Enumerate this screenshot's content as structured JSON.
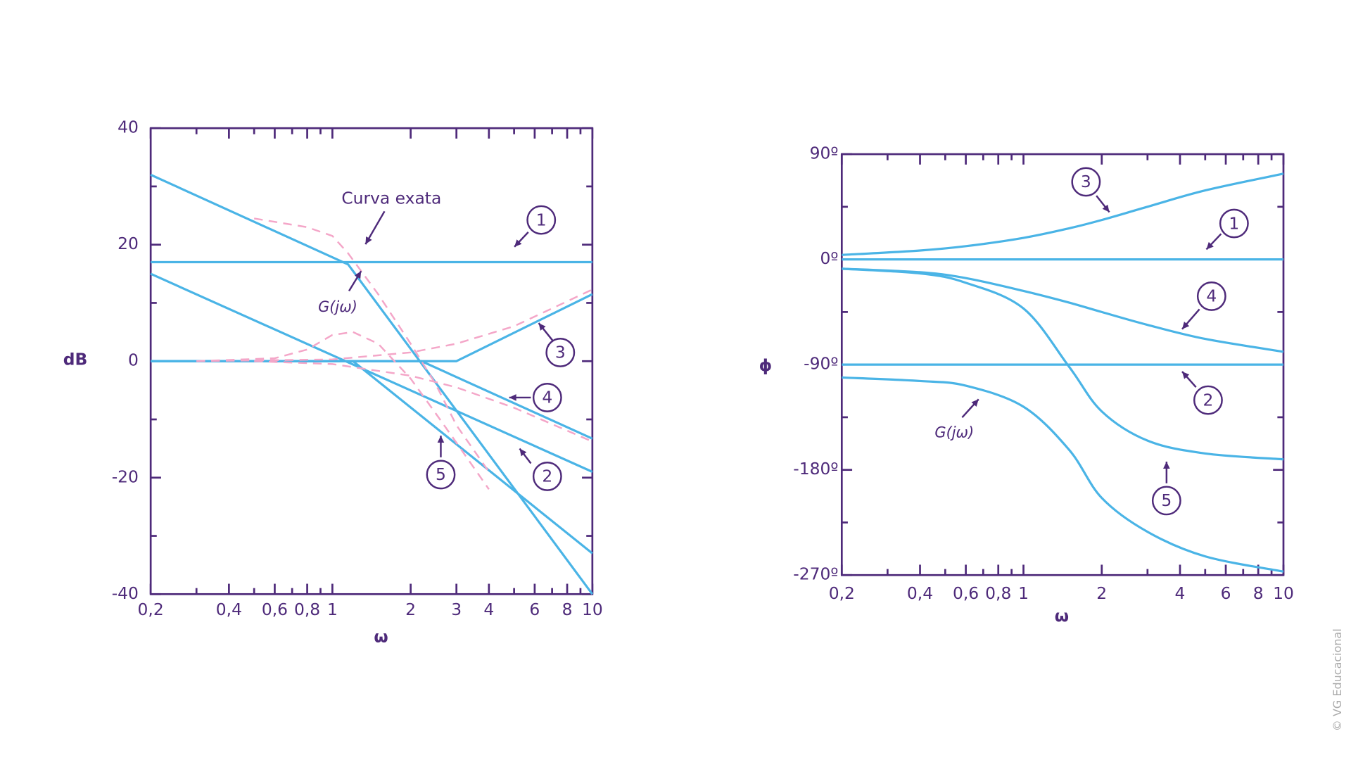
{
  "chart_data": [
    {
      "type": "line",
      "log_x": true,
      "smooth": false,
      "ylabel": "dB",
      "xlabel": "ω",
      "annotation": "Curva exata",
      "xlim": [
        0.2,
        10
      ],
      "ylim": [
        -40,
        40
      ],
      "xticks": [
        {
          "value": 0.2,
          "label": "0,2"
        },
        {
          "value": 0.4,
          "label": "0,4"
        },
        {
          "value": 0.6,
          "label": "0,6"
        },
        {
          "value": 0.8,
          "label": "0,8"
        },
        1,
        2,
        3,
        4,
        6,
        8,
        10
      ],
      "xminorticks": [
        0.3,
        0.5,
        0.7,
        0.9,
        5,
        7,
        9
      ],
      "yticks": [
        -40,
        -20,
        0,
        20,
        40
      ],
      "yminorticks": [
        -30,
        -10,
        10,
        30
      ],
      "series": [
        {
          "name": "G(jω)",
          "color": "#4ab4e6",
          "x": [
            0.2,
            1.15,
            10
          ],
          "values": [
            32,
            16.6,
            -40
          ]
        },
        {
          "name": "1",
          "color": "#4ab4e6",
          "x": [
            0.2,
            10
          ],
          "values": [
            17,
            17
          ]
        },
        {
          "name": "2",
          "color": "#4ab4e6",
          "x": [
            0.2,
            10
          ],
          "values": [
            15,
            -19
          ]
        },
        {
          "name": "3",
          "color": "#4ab4e6",
          "x": [
            0.2,
            3,
            10
          ],
          "values": [
            0,
            0,
            11.5
          ]
        },
        {
          "name": "4",
          "color": "#4ab4e6",
          "x": [
            0.2,
            2.2,
            10
          ],
          "values": [
            0,
            0,
            -13.3
          ]
        },
        {
          "name": "5",
          "color": "#4ab4e6",
          "x": [
            0.2,
            1.2,
            10
          ],
          "values": [
            0,
            0,
            -33
          ]
        },
        {
          "color": "#f4a6c8",
          "style": "dashed",
          "x": [
            0.5,
            0.8,
            1,
            1.15,
            1.5,
            2,
            2.5,
            3,
            4
          ],
          "values": [
            24.5,
            23,
            21.5,
            18.5,
            11.5,
            3,
            -4,
            -11,
            -19
          ]
        },
        {
          "color": "#f4a6c8",
          "style": "dashed",
          "x": [
            0.3,
            0.6,
            0.8,
            1,
            1.2,
            1.5,
            2,
            2.5,
            3,
            4
          ],
          "values": [
            0,
            0.5,
            2,
            4.5,
            5,
            3,
            -3,
            -9,
            -14,
            -22
          ]
        },
        {
          "color": "#f4a6c8",
          "style": "dashed",
          "x": [
            0.3,
            1,
            2,
            3,
            5,
            10
          ],
          "values": [
            0,
            0.3,
            1.5,
            3,
            6,
            12.3
          ]
        },
        {
          "color": "#f4a6c8",
          "style": "dashed",
          "x": [
            0.5,
            1,
            2,
            3,
            5,
            10
          ],
          "values": [
            0,
            -0.5,
            -2.5,
            -4.5,
            -8,
            -13.8
          ]
        }
      ]
    },
    {
      "type": "line",
      "log_x": true,
      "smooth": true,
      "ylabel": "ϕ",
      "xlabel": "ω",
      "xlim": [
        0.2,
        10
      ],
      "ylim": [
        -270,
        90
      ],
      "xticks": [
        {
          "value": 0.2,
          "label": "0,2"
        },
        {
          "value": 0.4,
          "label": "0,4"
        },
        {
          "value": 0.6,
          "label": "0,6"
        },
        {
          "value": 0.8,
          "label": "0,8"
        },
        1,
        2,
        4,
        6,
        8,
        10
      ],
      "xminorticks": [
        0.3,
        0.5,
        0.7,
        0.9,
        3,
        5,
        7,
        9
      ],
      "yticks": [
        {
          "value": -270,
          "label": "-270º"
        },
        {
          "value": -180,
          "label": "-180º"
        },
        {
          "value": -90,
          "label": "-90º"
        },
        {
          "value": 0,
          "label": "0º"
        },
        {
          "value": 90,
          "label": "90º"
        }
      ],
      "yminorticks": [
        -225,
        -135,
        -45,
        45
      ],
      "series": [
        {
          "name": "G(jω)",
          "color": "#4ab4e6",
          "x": [
            0.2,
            0.4,
            0.6,
            1,
            1.5,
            2,
            3,
            5,
            10
          ],
          "values": [
            -101,
            -104,
            -108,
            -126,
            -163,
            -204,
            -233,
            -254,
            -267
          ]
        },
        {
          "name": "1",
          "color": "#4ab4e6",
          "x": [
            0.2,
            10
          ],
          "values": [
            0,
            0
          ]
        },
        {
          "name": "2",
          "color": "#4ab4e6",
          "x": [
            0.2,
            10
          ],
          "values": [
            -90,
            -90
          ]
        },
        {
          "name": "3",
          "color": "#4ab4e6",
          "x": [
            0.2,
            0.4,
            0.6,
            1,
            1.5,
            2,
            3,
            5,
            10
          ],
          "values": [
            3.8,
            7.6,
            11.3,
            18.4,
            26.6,
            33.7,
            45,
            59,
            73.3
          ]
        },
        {
          "name": "4",
          "color": "#4ab4e6",
          "x": [
            0.2,
            0.4,
            0.6,
            1,
            1.5,
            2,
            3,
            5,
            10
          ],
          "values": [
            -8,
            -11,
            -16,
            -27,
            -37,
            -45,
            -56,
            -68,
            -79
          ]
        },
        {
          "name": "5",
          "color": "#4ab4e6",
          "x": [
            0.2,
            0.4,
            0.6,
            1,
            1.5,
            2,
            3,
            5,
            10
          ],
          "values": [
            -8,
            -12,
            -20,
            -42,
            -92,
            -130,
            -155,
            -166,
            -171
          ]
        }
      ]
    }
  ],
  "credit": "© VG Educacional"
}
